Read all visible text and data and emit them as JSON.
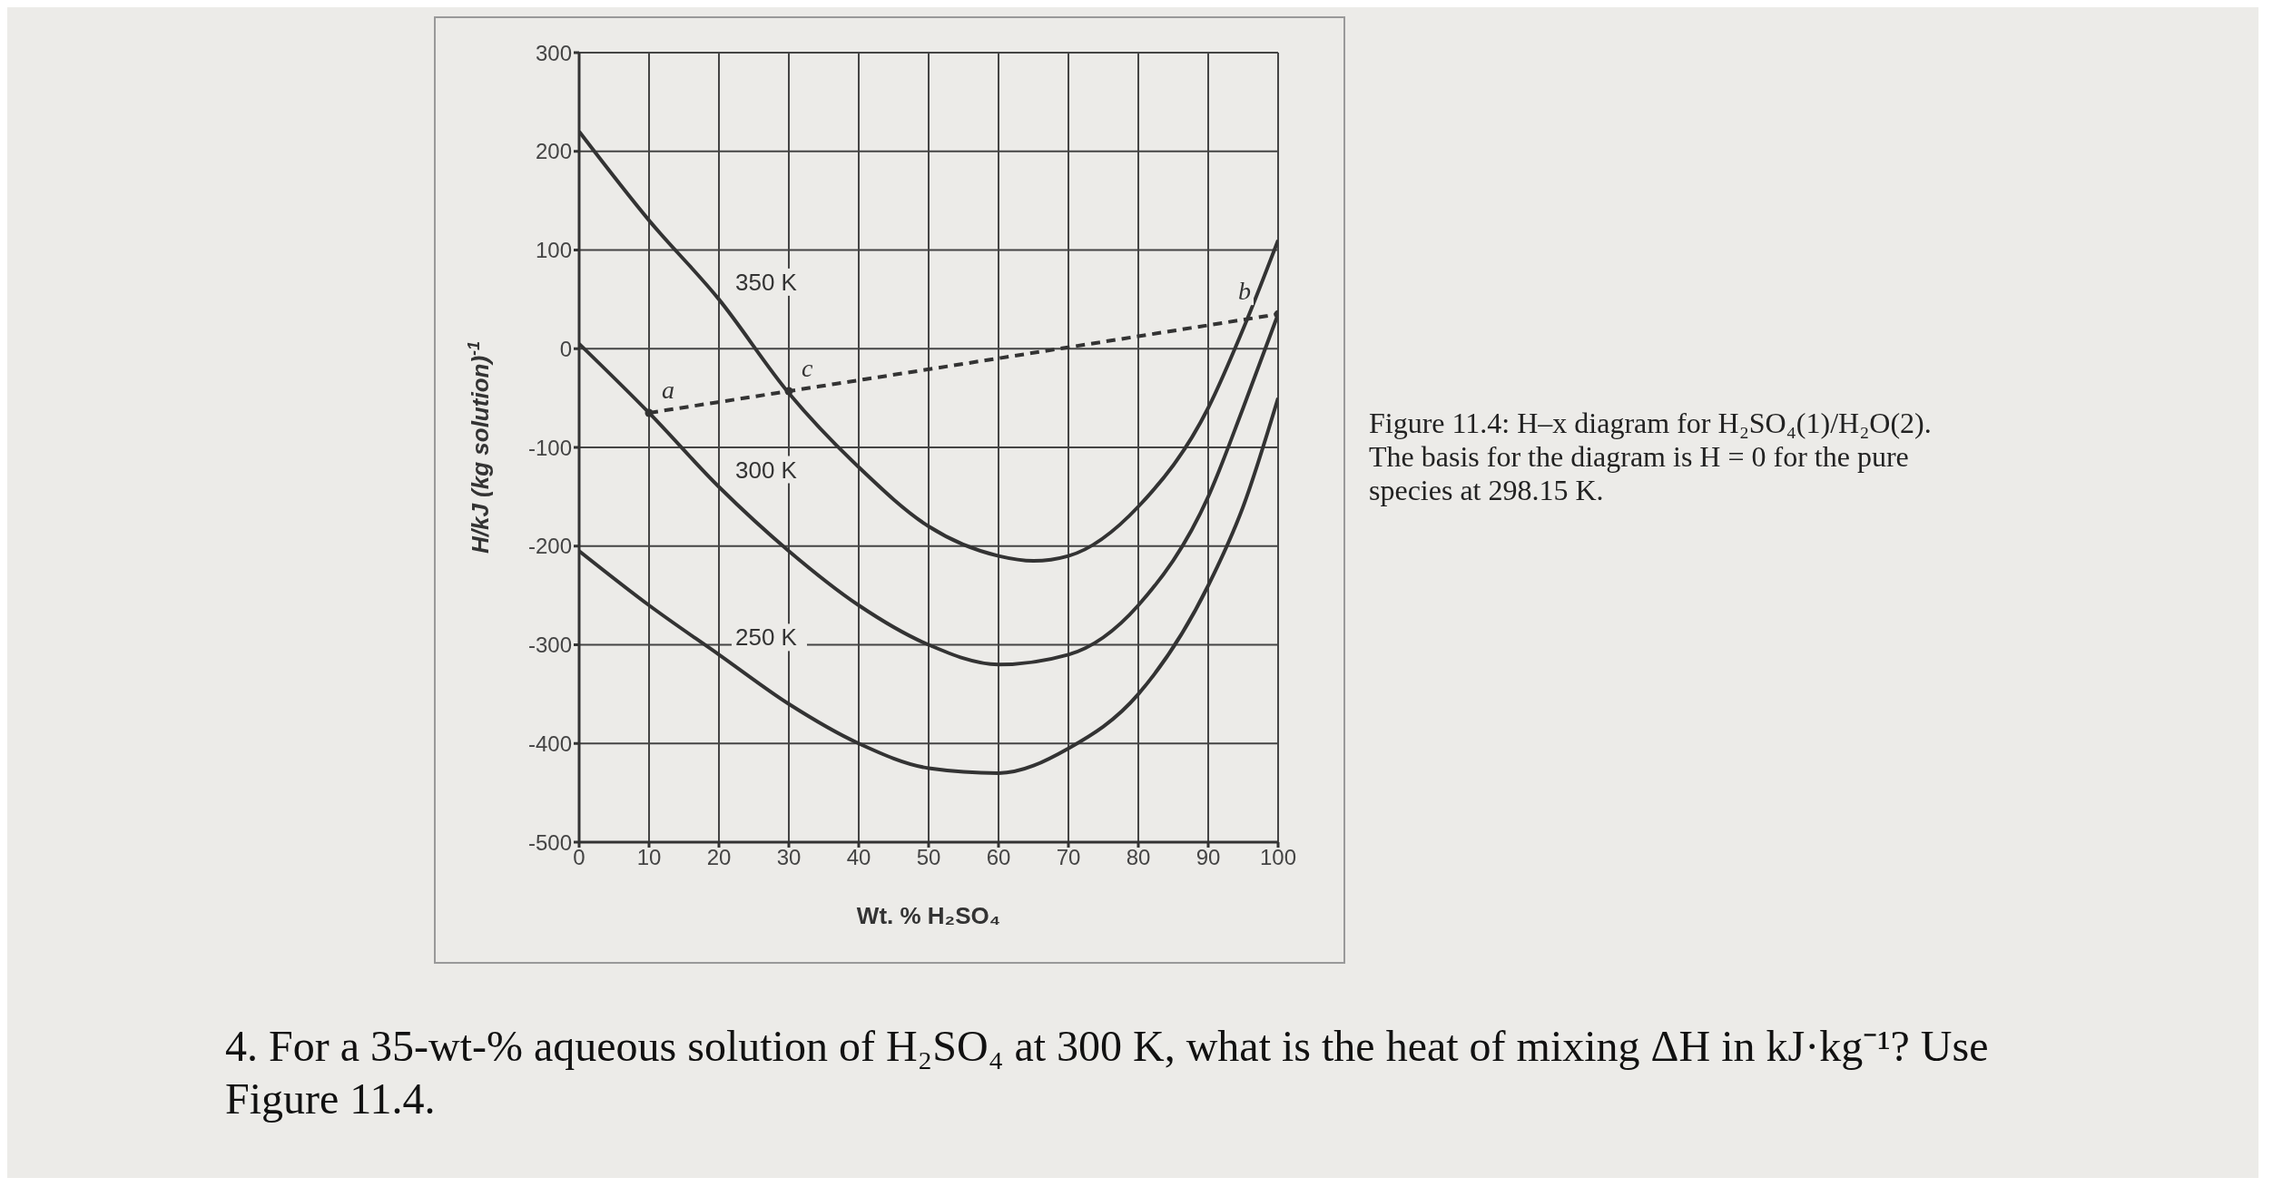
{
  "chart_data": {
    "type": "line",
    "xlabel": "Wt. % H₂SO₄",
    "ylabel": "H/kJ (kg solution)$^{-1}$",
    "xlim": [
      0,
      100
    ],
    "xticks": [
      0,
      10,
      20,
      30,
      40,
      50,
      60,
      70,
      80,
      90,
      100
    ],
    "ylim": [
      -500,
      300
    ],
    "yticks": [
      -500,
      -400,
      -300,
      -200,
      -100,
      0,
      100,
      200,
      300
    ],
    "grid": true,
    "legend": false,
    "marker": "none",
    "line_style": "solid",
    "series": [
      {
        "name": "350 K",
        "color": "#333333",
        "x": [
          0,
          10,
          20,
          30,
          40,
          50,
          60,
          65,
          70,
          80,
          90,
          95,
          100
        ],
        "values": [
          220,
          130,
          50,
          -45,
          -120,
          -180,
          -210,
          -215,
          -210,
          -160,
          -60,
          20,
          110
        ]
      },
      {
        "name": "300 K",
        "color": "#333333",
        "x": [
          0,
          10,
          20,
          30,
          40,
          50,
          60,
          70,
          80,
          90,
          95,
          100
        ],
        "values": [
          5,
          -65,
          -140,
          -205,
          -260,
          -300,
          -320,
          -310,
          -260,
          -150,
          -60,
          35
        ]
      },
      {
        "name": "250 K",
        "color": "#333333",
        "x": [
          0,
          10,
          20,
          30,
          40,
          50,
          60,
          70,
          80,
          90,
          95,
          100
        ],
        "values": [
          -205,
          -260,
          -310,
          -360,
          -400,
          -425,
          -430,
          -405,
          -350,
          -240,
          -160,
          -50
        ]
      },
      {
        "color": "#333333",
        "line_style": "dashed",
        "x": [
          10,
          30,
          100
        ],
        "values": [
          -65,
          -43,
          35
        ]
      },
      {
        "type": "scatter",
        "color": "#333333",
        "marker": "circle",
        "x": [
          10,
          30,
          100
        ],
        "values": [
          -65,
          -43,
          35
        ],
        "value_labels": [
          "a",
          "c",
          "b"
        ]
      }
    ],
    "annotations": [
      "Figure 11.4: H–x diagram for H₂SO₄(1)/H₂O(2). The basis for the diagram is H = 0 for the pure species at 298.15 K.",
      "4. For a 35-wt-% aqueous solution of H₂SO₄ at 300 K, what is the heat of mixing ΔH in kJ·kg⁻¹? Use Figure 11.4."
    ]
  }
}
